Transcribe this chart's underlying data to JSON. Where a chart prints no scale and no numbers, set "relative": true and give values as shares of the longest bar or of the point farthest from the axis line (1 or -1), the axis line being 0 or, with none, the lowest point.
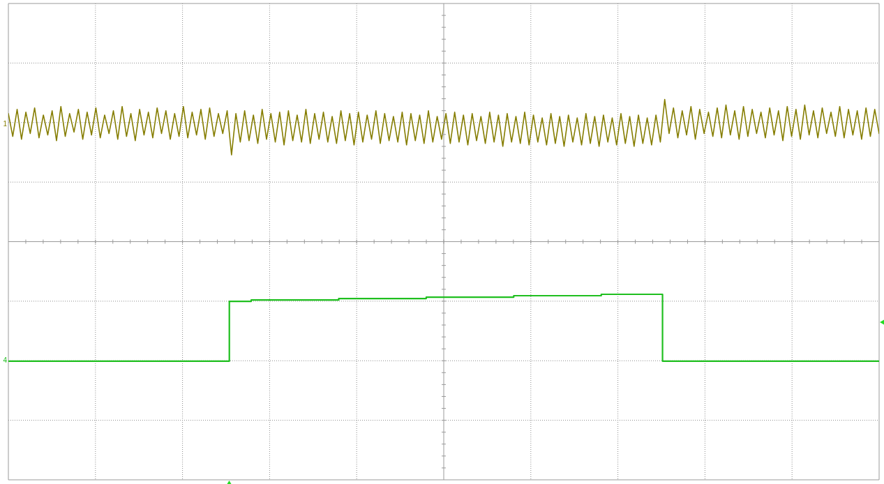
{
  "chart_data": {
    "type": "line",
    "relative": true,
    "grid": true,
    "legend": false,
    "marker": "none",
    "line_style": "solid",
    "categories": [
      null,
      null,
      null,
      null,
      null,
      null,
      null,
      null,
      null,
      null,
      null,
      null,
      null,
      null,
      null,
      null,
      null,
      null,
      null,
      null,
      null,
      null,
      null,
      null,
      null,
      null,
      null,
      null,
      null,
      null,
      null,
      null,
      null,
      null,
      null,
      null,
      null,
      null,
      null,
      null,
      null,
      null,
      null,
      null,
      null,
      null,
      null,
      null,
      null,
      null,
      null,
      null,
      null,
      null,
      null,
      null,
      null,
      null,
      null,
      null,
      null,
      null,
      null,
      null,
      null,
      null,
      null,
      null,
      null,
      null,
      null,
      null,
      null,
      null,
      null,
      null,
      null,
      null,
      null,
      null,
      null,
      null,
      null,
      null,
      null,
      null,
      null,
      null,
      null,
      null,
      null,
      null,
      null,
      null,
      null,
      null,
      null,
      null,
      null,
      null,
      null,
      null,
      null,
      null,
      null,
      null,
      null,
      null,
      null,
      null,
      null,
      null,
      null,
      null,
      null,
      null,
      null,
      null,
      null,
      null,
      null,
      null,
      null,
      null,
      null,
      null,
      null,
      null,
      null,
      null,
      null,
      null,
      null,
      null,
      null,
      null,
      null,
      null,
      null,
      null,
      null,
      null,
      null,
      null,
      null,
      null,
      null,
      null,
      null,
      null,
      null,
      null,
      null,
      null,
      null,
      null,
      null,
      null,
      null,
      null,
      null,
      null,
      null,
      null,
      null,
      null,
      null,
      null,
      null,
      null,
      null,
      null,
      null,
      null,
      null,
      null,
      null,
      null,
      null,
      null,
      null,
      null,
      null,
      null,
      null,
      null,
      null,
      null,
      null,
      null,
      null,
      null,
      null,
      null,
      null,
      null,
      null,
      null,
      null,
      null
    ],
    "series": [
      {
        "name": "1",
        "color": "#857d00",
        "values": [
          0.9,
          0.74,
          0.93,
          0.72,
          0.91,
          0.76,
          0.94,
          0.73,
          0.89,
          0.75,
          0.92,
          0.71,
          0.95,
          0.74,
          0.9,
          0.77,
          0.93,
          0.72,
          0.91,
          0.75,
          0.94,
          0.73,
          0.89,
          0.76,
          0.92,
          0.72,
          0.95,
          0.74,
          0.9,
          0.71,
          0.93,
          0.75,
          0.91,
          0.73,
          0.94,
          0.76,
          0.92,
          0.72,
          0.9,
          0.74,
          0.95,
          0.73,
          0.91,
          0.75,
          0.93,
          0.72,
          0.94,
          0.74,
          0.9,
          0.76,
          0.92,
          0.61,
          0.9,
          0.7,
          0.92,
          0.71,
          0.89,
          0.69,
          0.93,
          0.72,
          0.9,
          0.7,
          0.91,
          0.68,
          0.92,
          0.71,
          0.89,
          0.7,
          0.93,
          0.69,
          0.9,
          0.72,
          0.91,
          0.7,
          0.88,
          0.69,
          0.92,
          0.71,
          0.9,
          0.68,
          0.91,
          0.7,
          0.89,
          0.72,
          0.92,
          0.69,
          0.9,
          0.71,
          0.88,
          0.7,
          0.91,
          0.68,
          0.9,
          0.71,
          0.89,
          0.69,
          0.92,
          0.7,
          0.88,
          0.72,
          0.9,
          0.69,
          0.91,
          0.7,
          0.89,
          0.68,
          0.9,
          0.71,
          0.88,
          0.69,
          0.91,
          0.7,
          0.89,
          0.67,
          0.9,
          0.7,
          0.88,
          0.69,
          0.91,
          0.68,
          0.89,
          0.7,
          0.87,
          0.68,
          0.9,
          0.69,
          0.88,
          0.67,
          0.89,
          0.7,
          0.87,
          0.68,
          0.9,
          0.69,
          0.88,
          0.67,
          0.89,
          0.7,
          0.87,
          0.68,
          0.9,
          0.69,
          0.88,
          0.67,
          0.89,
          0.69,
          0.87,
          0.68,
          0.89,
          0.7,
          1.0,
          0.76,
          0.94,
          0.73,
          0.92,
          0.75,
          0.95,
          0.72,
          0.93,
          0.76,
          0.91,
          0.74,
          0.94,
          0.73,
          0.96,
          0.75,
          0.92,
          0.72,
          0.95,
          0.74,
          0.93,
          0.76,
          0.91,
          0.73,
          0.94,
          0.75,
          0.92,
          0.71,
          0.95,
          0.74,
          0.93,
          0.72,
          0.96,
          0.75,
          0.92,
          0.73,
          0.94,
          0.76,
          0.91,
          0.74,
          0.95,
          0.73,
          0.93,
          0.75,
          0.92,
          0.72,
          0.94,
          0.74,
          0.93,
          0.76
        ]
      },
      {
        "name": "4",
        "type": "step",
        "color": "#1fbf1f",
        "values": [
          -0.84,
          -0.84,
          -0.84,
          -0.84,
          -0.84,
          -0.84,
          -0.84,
          -0.84,
          -0.84,
          -0.84,
          -0.84,
          -0.84,
          -0.84,
          -0.84,
          -0.84,
          -0.84,
          -0.84,
          -0.84,
          -0.84,
          -0.84,
          -0.84,
          -0.84,
          -0.84,
          -0.84,
          -0.84,
          -0.84,
          -0.84,
          -0.84,
          -0.84,
          -0.84,
          -0.84,
          -0.84,
          -0.84,
          -0.84,
          -0.84,
          -0.84,
          -0.84,
          -0.84,
          -0.84,
          -0.84,
          -0.84,
          -0.84,
          -0.84,
          -0.84,
          -0.84,
          -0.84,
          -0.84,
          -0.84,
          -0.84,
          -0.84,
          -0.84,
          -0.42,
          -0.42,
          -0.42,
          -0.42,
          -0.42,
          -0.41,
          -0.41,
          -0.41,
          -0.41,
          -0.41,
          -0.41,
          -0.41,
          -0.41,
          -0.41,
          -0.41,
          -0.41,
          -0.41,
          -0.41,
          -0.41,
          -0.41,
          -0.41,
          -0.41,
          -0.41,
          -0.41,
          -0.41,
          -0.4,
          -0.4,
          -0.4,
          -0.4,
          -0.4,
          -0.4,
          -0.4,
          -0.4,
          -0.4,
          -0.4,
          -0.4,
          -0.4,
          -0.4,
          -0.4,
          -0.4,
          -0.4,
          -0.4,
          -0.4,
          -0.4,
          -0.4,
          -0.39,
          -0.39,
          -0.39,
          -0.39,
          -0.39,
          -0.39,
          -0.39,
          -0.39,
          -0.39,
          -0.39,
          -0.39,
          -0.39,
          -0.39,
          -0.39,
          -0.39,
          -0.39,
          -0.39,
          -0.39,
          -0.39,
          -0.39,
          -0.38,
          -0.38,
          -0.38,
          -0.38,
          -0.38,
          -0.38,
          -0.38,
          -0.38,
          -0.38,
          -0.38,
          -0.38,
          -0.38,
          -0.38,
          -0.38,
          -0.38,
          -0.38,
          -0.38,
          -0.38,
          -0.38,
          -0.38,
          -0.37,
          -0.37,
          -0.37,
          -0.37,
          -0.37,
          -0.37,
          -0.37,
          -0.37,
          -0.37,
          -0.37,
          -0.37,
          -0.37,
          -0.37,
          -0.37,
          -0.84,
          -0.84,
          -0.84,
          -0.84,
          -0.84,
          -0.84,
          -0.84,
          -0.84,
          -0.84,
          -0.84,
          -0.84,
          -0.84,
          -0.84,
          -0.84,
          -0.84,
          -0.84,
          -0.84,
          -0.84,
          -0.84,
          -0.84,
          -0.84,
          -0.84,
          -0.84,
          -0.84,
          -0.84,
          -0.84,
          -0.84,
          -0.84,
          -0.84,
          -0.84,
          -0.84,
          -0.84,
          -0.84,
          -0.84,
          -0.84,
          -0.84,
          -0.84,
          -0.84,
          -0.84,
          -0.84,
          -0.84,
          -0.84,
          -0.84,
          -0.84,
          -0.84,
          -0.84,
          -0.84,
          -0.84,
          -0.84,
          -0.84
        ]
      }
    ]
  }
}
